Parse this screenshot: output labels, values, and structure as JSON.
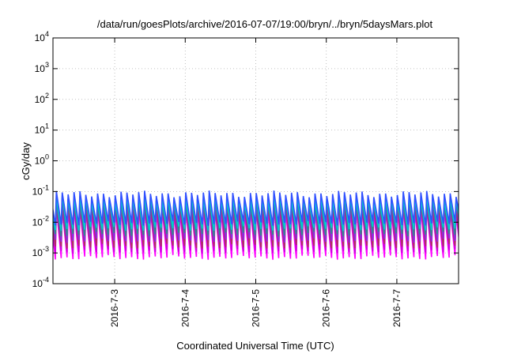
{
  "chart_data": {
    "type": "line",
    "title": "/data/run/goesPlots/archive/2016-07-07/19:00/bryn/../bryn/5daysMars.plot",
    "xlabel": "Coordinated Universal Time (UTC)",
    "ylabel": "cGy/day",
    "yscale": "log",
    "ylim": [
      0.0001,
      10000
    ],
    "xlim": [
      "2016-07-02 03:00",
      "2016-07-07 21:00"
    ],
    "x_ticks": [
      "2016-7-3",
      "2016-7-4",
      "2016-7-5",
      "2016-7-6",
      "2016-7-7"
    ],
    "y_ticks": [
      {
        "base": "10",
        "exp": "-4"
      },
      {
        "base": "10",
        "exp": "-3"
      },
      {
        "base": "10",
        "exp": "-2"
      },
      {
        "base": "10",
        "exp": "-1"
      },
      {
        "base": "10",
        "exp": "0"
      },
      {
        "base": "10",
        "exp": "1"
      },
      {
        "base": "10",
        "exp": "2"
      },
      {
        "base": "10",
        "exp": "3"
      },
      {
        "base": "10",
        "exp": "4"
      }
    ],
    "grid": true,
    "cycles_per_day": 12,
    "series": [
      {
        "color": "#ff00ff",
        "peak": 0.025,
        "trough": 0.0007
      },
      {
        "color": "#cc00dd",
        "peak": 0.03,
        "trough": 0.0011
      },
      {
        "color": "#b03060",
        "peak": 0.035,
        "trough": 0.0016
      },
      {
        "color": "#8a2be2",
        "peak": 0.045,
        "trough": 0.0025
      },
      {
        "color": "#2e8b8b",
        "peak": 0.05,
        "trough": 0.004
      },
      {
        "color": "#00ced1",
        "peak": 0.06,
        "trough": 0.006
      },
      {
        "color": "#3050ff",
        "peak": 0.085,
        "trough": 0.009
      }
    ]
  }
}
